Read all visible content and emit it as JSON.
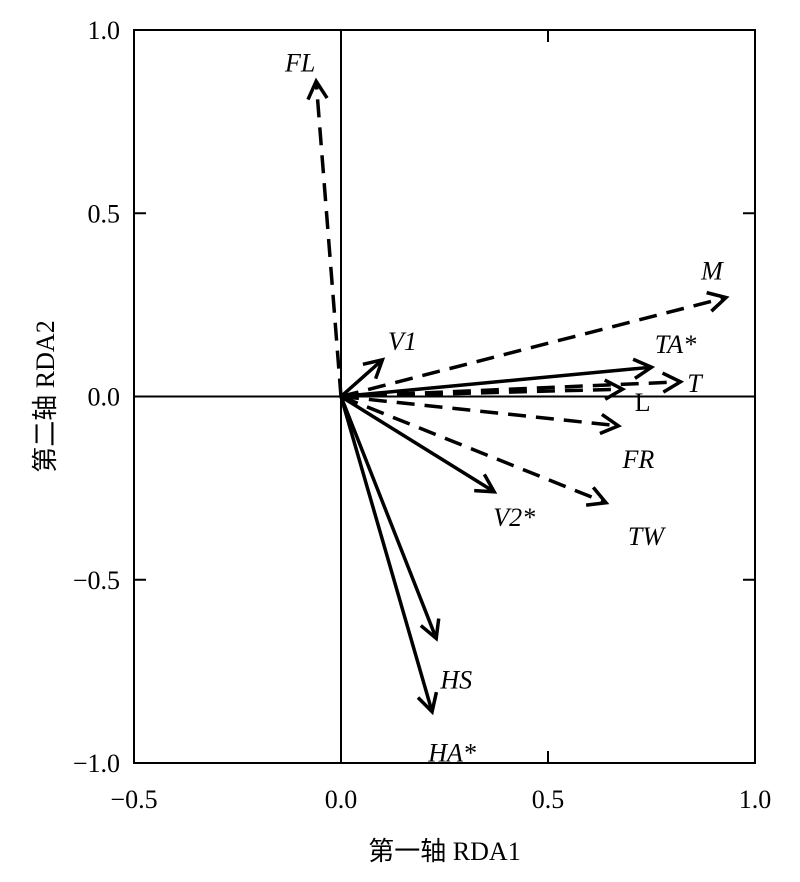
{
  "chart_data": {
    "type": "scatter",
    "subtype": "rda-biplot-vectors",
    "xlabel": "第一轴  RDA1",
    "ylabel": "第二轴  RDA2",
    "xlim": [
      -0.5,
      1.0
    ],
    "ylim": [
      -1.0,
      1.0
    ],
    "x_ticks": [
      -0.5,
      0.0,
      0.5,
      1.0
    ],
    "x_tick_labels": [
      "−0.5",
      "0.0",
      "0.5",
      "1.0"
    ],
    "y_ticks": [
      -1.0,
      -0.5,
      0.0,
      0.5,
      1.0
    ],
    "y_tick_labels": [
      "−1.0",
      "−0.5",
      "0.0",
      "0.5",
      "1.0"
    ],
    "grid": false,
    "zero_lines": true,
    "legend": "none",
    "series": [
      {
        "label": "FL",
        "x": -0.06,
        "y": 0.86,
        "style": "dashed",
        "italic": true
      },
      {
        "label": "V1",
        "x": 0.1,
        "y": 0.1,
        "style": "solid",
        "italic": true
      },
      {
        "label": "M",
        "x": 0.93,
        "y": 0.27,
        "style": "dashed",
        "italic": true
      },
      {
        "label": "TA*",
        "x": 0.75,
        "y": 0.08,
        "style": "solid",
        "italic": true
      },
      {
        "label": "T",
        "x": 0.82,
        "y": 0.04,
        "style": "dashed",
        "italic": true
      },
      {
        "label": "L",
        "x": 0.68,
        "y": 0.02,
        "style": "dashed",
        "italic": false
      },
      {
        "label": "FR",
        "x": 0.67,
        "y": -0.08,
        "style": "dashed",
        "italic": true
      },
      {
        "label": "TW",
        "x": 0.64,
        "y": -0.29,
        "style": "dashed",
        "italic": true
      },
      {
        "label": "V2*",
        "x": 0.37,
        "y": -0.26,
        "style": "solid",
        "italic": true
      },
      {
        "label": "HS",
        "x": 0.23,
        "y": -0.66,
        "style": "solid",
        "italic": true
      },
      {
        "label": "HA*",
        "x": 0.22,
        "y": -0.86,
        "style": "solid",
        "italic": true
      }
    ]
  }
}
